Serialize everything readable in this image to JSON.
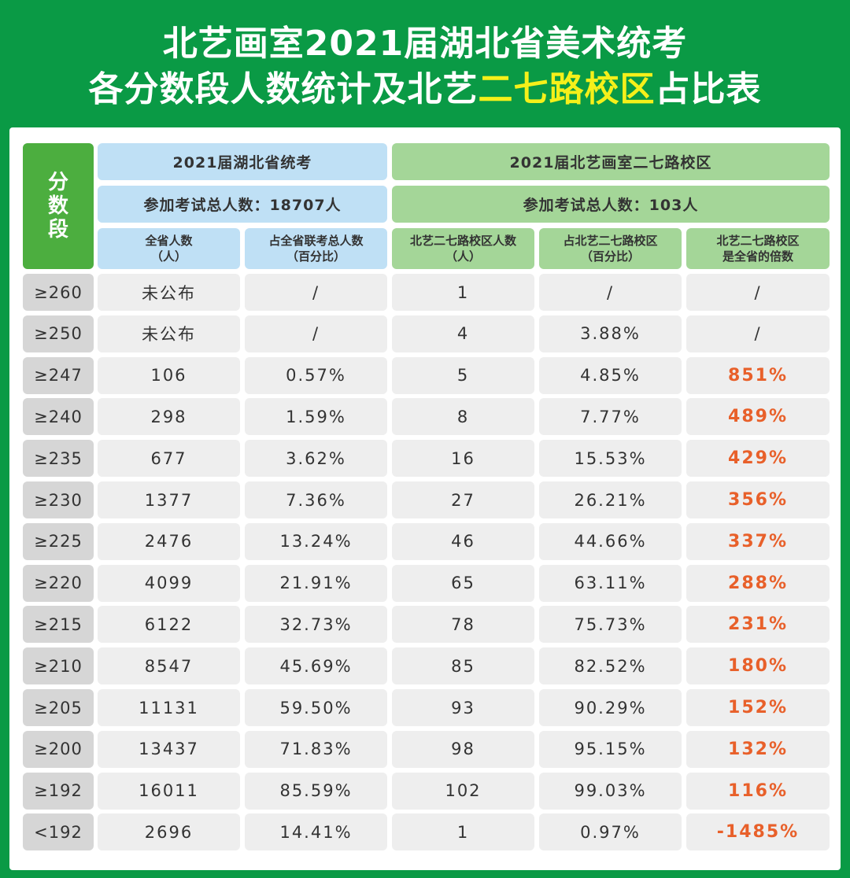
{
  "title": {
    "line1": "北艺画室2021届湖北省美术统考",
    "line2_prefix": "各分数段人数统计及北艺",
    "line2_highlight": "二七路校区",
    "line2_suffix": "占比表",
    "highlight_color": "#f5f01a"
  },
  "side_label": [
    "分",
    "数",
    "段"
  ],
  "province_group": {
    "title": "2021届湖北省统考",
    "total": "参加考试总人数：18707人",
    "col1": [
      "全省人数",
      "（人）"
    ],
    "col2": [
      "占全省联考总人数",
      "（百分比）"
    ]
  },
  "campus_group": {
    "title": "2021届北艺画室二七路校区",
    "total": "参加考试总人数：103人",
    "col1": [
      "北艺二七路校区人数",
      "（人）"
    ],
    "col2": [
      "占北艺二七路校区",
      "（百分比）"
    ],
    "col3": [
      "北艺二七路校区",
      "是全省的倍数"
    ]
  },
  "colors": {
    "brand_green": "#0a9a45",
    "blue_header": "#bfe0f5",
    "green_header": "#a4d698",
    "multiplier_orange": "#e8602a"
  },
  "rows": [
    {
      "score": "≥260",
      "prov_count": "未公布",
      "prov_pct": "/",
      "campus_count": "1",
      "campus_pct": "/",
      "multiple": "/"
    },
    {
      "score": "≥250",
      "prov_count": "未公布",
      "prov_pct": "/",
      "campus_count": "4",
      "campus_pct": "3.88%",
      "multiple": "/"
    },
    {
      "score": "≥247",
      "prov_count": "106",
      "prov_pct": "0.57%",
      "campus_count": "5",
      "campus_pct": "4.85%",
      "multiple": "851%"
    },
    {
      "score": "≥240",
      "prov_count": "298",
      "prov_pct": "1.59%",
      "campus_count": "8",
      "campus_pct": "7.77%",
      "multiple": "489%"
    },
    {
      "score": "≥235",
      "prov_count": "677",
      "prov_pct": "3.62%",
      "campus_count": "16",
      "campus_pct": "15.53%",
      "multiple": "429%"
    },
    {
      "score": "≥230",
      "prov_count": "1377",
      "prov_pct": "7.36%",
      "campus_count": "27",
      "campus_pct": "26.21%",
      "multiple": "356%"
    },
    {
      "score": "≥225",
      "prov_count": "2476",
      "prov_pct": "13.24%",
      "campus_count": "46",
      "campus_pct": "44.66%",
      "multiple": "337%"
    },
    {
      "score": "≥220",
      "prov_count": "4099",
      "prov_pct": "21.91%",
      "campus_count": "65",
      "campus_pct": "63.11%",
      "multiple": "288%"
    },
    {
      "score": "≥215",
      "prov_count": "6122",
      "prov_pct": "32.73%",
      "campus_count": "78",
      "campus_pct": "75.73%",
      "multiple": "231%"
    },
    {
      "score": "≥210",
      "prov_count": "8547",
      "prov_pct": "45.69%",
      "campus_count": "85",
      "campus_pct": "82.52%",
      "multiple": "180%"
    },
    {
      "score": "≥205",
      "prov_count": "11131",
      "prov_pct": "59.50%",
      "campus_count": "93",
      "campus_pct": "90.29%",
      "multiple": "152%"
    },
    {
      "score": "≥200",
      "prov_count": "13437",
      "prov_pct": "71.83%",
      "campus_count": "98",
      "campus_pct": "95.15%",
      "multiple": "132%"
    },
    {
      "score": "≥192",
      "prov_count": "16011",
      "prov_pct": "85.59%",
      "campus_count": "102",
      "campus_pct": "99.03%",
      "multiple": "116%"
    },
    {
      "score": "<192",
      "prov_count": "2696",
      "prov_pct": "14.41%",
      "campus_count": "1",
      "campus_pct": "0.97%",
      "multiple": "-1485%"
    }
  ]
}
